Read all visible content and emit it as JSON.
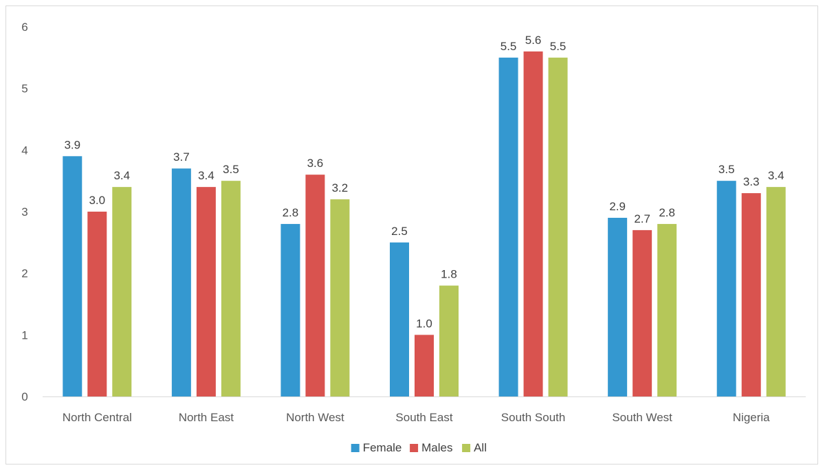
{
  "chart_data": {
    "type": "bar",
    "title": "",
    "xlabel": "",
    "ylabel": "",
    "ylim": [
      0,
      6
    ],
    "yticks": [
      0,
      1,
      2,
      3,
      4,
      5,
      6
    ],
    "grid": false,
    "legend_position": "bottom",
    "categories": [
      "North Central",
      "North East",
      "North West",
      "South East",
      "South South",
      "South West",
      "Nigeria"
    ],
    "series": [
      {
        "name": "Female",
        "color": "#3498D0",
        "values": [
          3.9,
          3.7,
          2.8,
          2.5,
          5.5,
          2.9,
          3.5
        ],
        "labels": [
          "3.9",
          "3.7",
          "2.8",
          "2.5",
          "5.5",
          "2.9",
          "3.5"
        ]
      },
      {
        "name": "Males",
        "color": "#D9534F",
        "values": [
          3.0,
          3.4,
          3.6,
          1.0,
          5.6,
          2.7,
          3.3
        ],
        "labels": [
          "3.0",
          "3.4",
          "3.6",
          "1.0",
          "5.6",
          "2.7",
          "3.3"
        ]
      },
      {
        "name": "All",
        "color": "#B5C759",
        "values": [
          3.4,
          3.5,
          3.2,
          1.8,
          5.5,
          2.8,
          3.4
        ],
        "labels": [
          "3.4",
          "3.5",
          "3.2",
          "1.8",
          "5.5",
          "2.8",
          "3.4"
        ]
      }
    ]
  }
}
